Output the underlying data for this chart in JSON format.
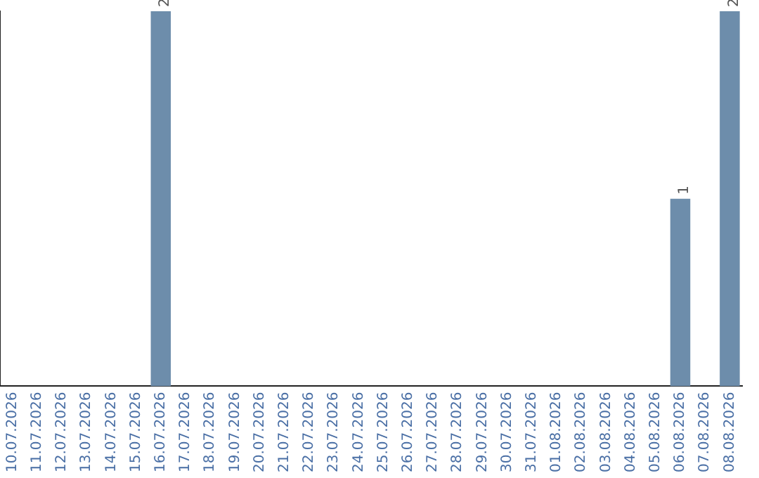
{
  "chart_data": {
    "type": "bar",
    "categories": [
      "10.07.2026",
      "11.07.2026",
      "12.07.2026",
      "13.07.2026",
      "14.07.2026",
      "15.07.2026",
      "16.07.2026",
      "17.07.2026",
      "18.07.2026",
      "19.07.2026",
      "20.07.2026",
      "21.07.2026",
      "22.07.2026",
      "23.07.2026",
      "24.07.2026",
      "25.07.2026",
      "26.07.2026",
      "27.07.2026",
      "28.07.2026",
      "29.07.2026",
      "30.07.2026",
      "31.07.2026",
      "01.08.2026",
      "02.08.2026",
      "03.08.2026",
      "04.08.2026",
      "05.08.2026",
      "06.08.2026",
      "07.08.2026",
      "08.08.2026"
    ],
    "values": [
      0,
      0,
      0,
      0,
      0,
      0,
      2,
      0,
      0,
      0,
      0,
      0,
      0,
      0,
      0,
      0,
      0,
      0,
      0,
      0,
      0,
      0,
      0,
      0,
      0,
      0,
      0,
      1,
      0,
      2
    ],
    "value_labels": [
      null,
      null,
      null,
      null,
      null,
      null,
      "2",
      null,
      null,
      null,
      null,
      null,
      null,
      null,
      null,
      null,
      null,
      null,
      null,
      null,
      null,
      null,
      null,
      null,
      null,
      null,
      null,
      "1",
      null,
      "2"
    ],
    "color": "#6d8dab",
    "grid": false,
    "legend": false,
    "tick_labels": "x"
  }
}
